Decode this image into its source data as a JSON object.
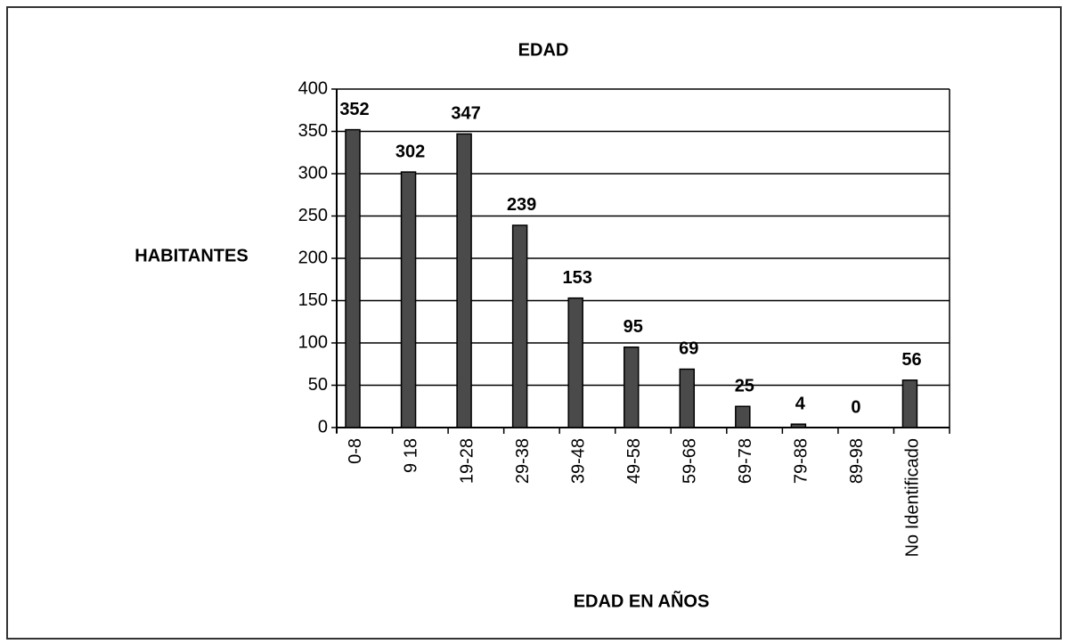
{
  "chart_data": {
    "type": "bar",
    "title": "EDAD",
    "y_label": "HABITANTES",
    "x_label": "EDAD EN AÑOS",
    "categories": [
      "0-8",
      "9 18",
      "19-28",
      "29-38",
      "39-48",
      "49-58",
      "59-68",
      "69-78",
      "79-88",
      "89-98",
      "No Identificado"
    ],
    "values": [
      352,
      302,
      347,
      239,
      153,
      95,
      69,
      25,
      4,
      0,
      56
    ],
    "color": "#4a4a4a",
    "ylim": [
      0,
      400
    ],
    "yticks": [
      0,
      50,
      100,
      150,
      200,
      250,
      300,
      350,
      400
    ],
    "grid": true
  }
}
